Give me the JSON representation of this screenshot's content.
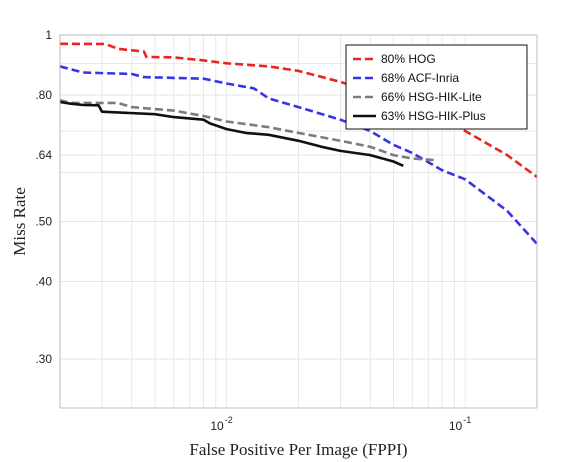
{
  "chart_data": {
    "type": "line",
    "title": "",
    "xlabel": "False Positive Per Image (FPPI)",
    "ylabel": "Miss Rate",
    "x_scale": "log",
    "y_scale": "log",
    "xlim": [
      0.002,
      0.2
    ],
    "ylim": [
      0.25,
      1.0
    ],
    "x_ticks": [
      {
        "value": 0.01,
        "base": "10",
        "exp": "-2"
      },
      {
        "value": 0.1,
        "base": "10",
        "exp": "-1"
      }
    ],
    "y_ticks": [
      {
        "value": 1.0,
        "label": "1"
      },
      {
        "value": 0.8,
        "label": ".80"
      },
      {
        "value": 0.64,
        "label": ".64"
      },
      {
        "value": 0.5,
        "label": ".50"
      },
      {
        "value": 0.4,
        "label": ".40"
      },
      {
        "value": 0.3,
        "label": ".30"
      }
    ],
    "grid": true,
    "legend_position": "top-right",
    "series": [
      {
        "name": "80% HOG",
        "color": "#e8261f",
        "style": "dashed",
        "points": [
          [
            0.002,
            0.968
          ],
          [
            0.0031,
            0.967
          ],
          [
            0.0035,
            0.95
          ],
          [
            0.0045,
            0.94
          ],
          [
            0.0046,
            0.922
          ],
          [
            0.006,
            0.92
          ],
          [
            0.008,
            0.91
          ],
          [
            0.01,
            0.9
          ],
          [
            0.015,
            0.89
          ],
          [
            0.02,
            0.875
          ],
          [
            0.03,
            0.84
          ],
          [
            0.04,
            0.81
          ],
          [
            0.05,
            0.79
          ],
          [
            0.06,
            0.77
          ],
          [
            0.07,
            0.75
          ],
          [
            0.08,
            0.73
          ],
          [
            0.1,
            0.7
          ],
          [
            0.15,
            0.64
          ],
          [
            0.2,
            0.59
          ]
        ]
      },
      {
        "name": "68% ACF-Inria",
        "color": "#3535e8",
        "style": "dashed",
        "points": [
          [
            0.002,
            0.89
          ],
          [
            0.0025,
            0.87
          ],
          [
            0.004,
            0.865
          ],
          [
            0.0045,
            0.855
          ],
          [
            0.008,
            0.85
          ],
          [
            0.01,
            0.835
          ],
          [
            0.013,
            0.82
          ],
          [
            0.015,
            0.79
          ],
          [
            0.02,
            0.765
          ],
          [
            0.03,
            0.73
          ],
          [
            0.04,
            0.7
          ],
          [
            0.05,
            0.665
          ],
          [
            0.06,
            0.645
          ],
          [
            0.08,
            0.605
          ],
          [
            0.1,
            0.585
          ],
          [
            0.15,
            0.52
          ],
          [
            0.2,
            0.46
          ]
        ]
      },
      {
        "name": "66% HSG-HIK-Lite",
        "color": "#7c7c7c",
        "style": "dashed",
        "points": [
          [
            0.002,
            0.785
          ],
          [
            0.0022,
            0.777
          ],
          [
            0.0035,
            0.777
          ],
          [
            0.004,
            0.765
          ],
          [
            0.006,
            0.755
          ],
          [
            0.008,
            0.74
          ],
          [
            0.01,
            0.725
          ],
          [
            0.015,
            0.71
          ],
          [
            0.02,
            0.695
          ],
          [
            0.03,
            0.675
          ],
          [
            0.04,
            0.66
          ],
          [
            0.05,
            0.64
          ],
          [
            0.06,
            0.632
          ],
          [
            0.075,
            0.628
          ]
        ]
      },
      {
        "name": "63% HSG-HIK-Plus",
        "color": "#111111",
        "style": "solid",
        "points": [
          [
            0.002,
            0.78
          ],
          [
            0.0022,
            0.775
          ],
          [
            0.0025,
            0.771
          ],
          [
            0.0029,
            0.77
          ],
          [
            0.003,
            0.752
          ],
          [
            0.005,
            0.745
          ],
          [
            0.006,
            0.737
          ],
          [
            0.008,
            0.73
          ],
          [
            0.0085,
            0.72
          ],
          [
            0.01,
            0.705
          ],
          [
            0.012,
            0.695
          ],
          [
            0.015,
            0.69
          ],
          [
            0.02,
            0.675
          ],
          [
            0.025,
            0.66
          ],
          [
            0.03,
            0.65
          ],
          [
            0.04,
            0.64
          ],
          [
            0.05,
            0.625
          ],
          [
            0.055,
            0.615
          ]
        ]
      }
    ]
  }
}
